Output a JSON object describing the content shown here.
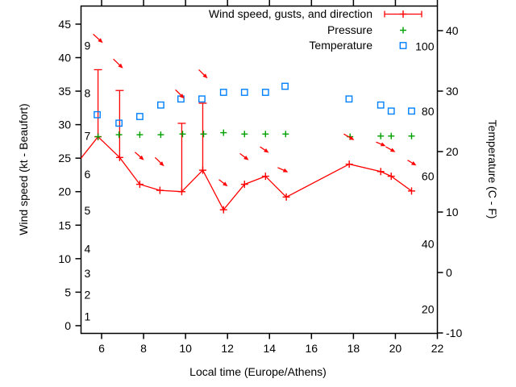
{
  "chart_data": {
    "type": "line",
    "title": "",
    "xlabel": "Local time (Europe/Athens)",
    "ylabel_left": "Wind speed (kt - Beaufort)",
    "ylabel_right": "Temperature (C - F)",
    "grid": false,
    "legend_position": "top-right-inside",
    "x_axis": {
      "min": 5.02,
      "max": 22,
      "ticks": [
        6,
        8,
        10,
        12,
        14,
        16,
        18,
        20,
        22
      ]
    },
    "y_left_axis": {
      "units": "kt",
      "min": -1.15,
      "max": 47.7,
      "ticks": [
        0,
        5,
        10,
        15,
        20,
        25,
        30,
        35,
        40,
        45
      ],
      "beaufort_labels": [
        {
          "b": "1",
          "kt": 1.4
        },
        {
          "b": "2",
          "kt": 4.6
        },
        {
          "b": "3",
          "kt": 7.8
        },
        {
          "b": "4",
          "kt": 11.5
        },
        {
          "b": "5",
          "kt": 17.2
        },
        {
          "b": "6",
          "kt": 22.6
        },
        {
          "b": "7",
          "kt": 28.3
        },
        {
          "b": "8",
          "kt": 34.7
        },
        {
          "b": "9",
          "kt": 41.8
        }
      ]
    },
    "y_right_axis": {
      "units": "C",
      "min": -10.07,
      "max": 44.07,
      "ticks": [
        -10,
        0,
        10,
        20,
        30,
        40
      ],
      "fahrenheit_labels": [
        {
          "f": "100",
          "c": 37.4
        },
        {
          "f": "80",
          "c": 26.7
        },
        {
          "f": "60",
          "c": 15.9
        },
        {
          "f": "40",
          "c": 4.7
        },
        {
          "f": "20",
          "c": -6.1
        }
      ]
    },
    "series": [
      {
        "name": "Wind speed, gusts, and direction",
        "type": "line+errorbars+arrows",
        "color": "#ff0000",
        "line_start": {
          "t": 5.02,
          "kt": 25.0
        },
        "points": [
          {
            "t": 5.83,
            "kt": 28.2,
            "gust": 38.2
          },
          {
            "t": 6.86,
            "kt": 25.1,
            "gust": 35.1
          },
          {
            "t": 7.82,
            "kt": 21.1
          },
          {
            "t": 8.78,
            "kt": 20.2
          },
          {
            "t": 9.82,
            "kt": 20.0,
            "gust": 30.2
          },
          {
            "t": 10.82,
            "kt": 23.2,
            "gust": 33.2
          },
          {
            "t": 11.81,
            "kt": 17.3
          },
          {
            "t": 12.81,
            "kt": 21.1
          },
          {
            "t": 13.81,
            "kt": 22.3
          },
          {
            "t": 14.8,
            "kt": 19.2
          },
          {
            "t": 17.8,
            "kt": 24.1
          },
          {
            "t": 19.3,
            "kt": 23.0
          },
          {
            "t": 19.8,
            "kt": 22.3
          },
          {
            "t": 20.77,
            "kt": 20.1
          }
        ],
        "direction_arrows": [
          [
            5.6,
            43.5,
            6.06,
            42.2
          ],
          [
            6.56,
            39.8,
            7.02,
            38.4
          ],
          [
            7.59,
            25.9,
            8.02,
            24.7
          ],
          [
            8.55,
            25.1,
            8.98,
            23.8
          ],
          [
            9.52,
            35.2,
            9.94,
            33.9
          ],
          [
            10.63,
            38.2,
            11.05,
            36.9
          ],
          [
            11.59,
            21.8,
            12.01,
            20.8
          ],
          [
            12.59,
            25.7,
            13.01,
            24.7
          ],
          [
            13.55,
            26.7,
            13.97,
            25.8
          ],
          [
            14.39,
            23.6,
            14.89,
            22.9
          ],
          [
            17.54,
            28.6,
            18.04,
            27.7
          ],
          [
            19.08,
            27.4,
            19.54,
            26.8
          ],
          [
            19.54,
            26.7,
            20.0,
            25.9
          ],
          [
            20.58,
            24.7,
            21.0,
            23.9
          ]
        ]
      },
      {
        "name": "Pressure",
        "type": "points",
        "marker": "plus",
        "color": "#00a000",
        "points_t_kt": [
          [
            5.83,
            28.2
          ],
          [
            6.83,
            28.5
          ],
          [
            7.82,
            28.5
          ],
          [
            8.82,
            28.5
          ],
          [
            9.86,
            28.6
          ],
          [
            10.86,
            28.6
          ],
          [
            11.81,
            28.8
          ],
          [
            12.81,
            28.6
          ],
          [
            13.81,
            28.6
          ],
          [
            14.77,
            28.6
          ],
          [
            17.84,
            28.2
          ],
          [
            19.3,
            28.3
          ],
          [
            19.8,
            28.3
          ],
          [
            20.77,
            28.3
          ]
        ]
      },
      {
        "name": "Temperature",
        "type": "points",
        "marker": "open-square",
        "color": "#0080ff",
        "points_t_c": [
          [
            5.79,
            26.1
          ],
          [
            6.83,
            24.7
          ],
          [
            7.82,
            25.8
          ],
          [
            8.82,
            27.7
          ],
          [
            9.78,
            28.7
          ],
          [
            10.78,
            28.7
          ],
          [
            11.81,
            29.8
          ],
          [
            12.81,
            29.8
          ],
          [
            13.81,
            29.8
          ],
          [
            14.74,
            30.8
          ],
          [
            17.79,
            28.7
          ],
          [
            19.3,
            27.7
          ],
          [
            19.8,
            26.7
          ],
          [
            20.77,
            26.7
          ]
        ]
      }
    ],
    "colors": {
      "axis": "#000000",
      "wind": "#ff0000",
      "pressure": "#00a000",
      "temperature": "#0080ff"
    }
  }
}
